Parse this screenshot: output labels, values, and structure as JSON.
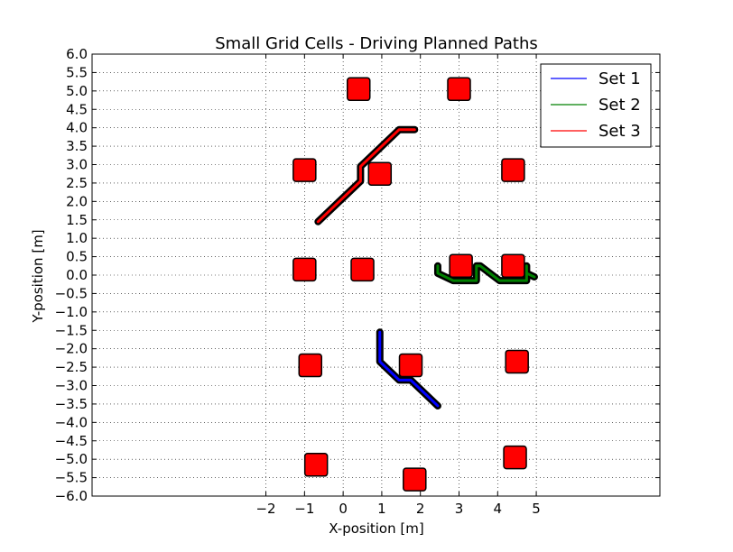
{
  "chart_data": {
    "type": "line",
    "title": "Small Grid Cells - Driving Planned Paths",
    "xlabel": "X-position [m]",
    "ylabel": "Y-position [m]",
    "xlim": [
      -6.5,
      8.2
    ],
    "ylim": [
      -6.0,
      6.0
    ],
    "xticks": [
      -2,
      -1,
      0,
      1,
      2,
      3,
      4,
      5
    ],
    "xtick_labels": [
      "−2",
      "−1",
      "0",
      "1",
      "2",
      "3",
      "4",
      "5"
    ],
    "yticks": [
      6.0,
      5.5,
      5.0,
      4.5,
      4.0,
      3.5,
      3.0,
      2.5,
      2.0,
      1.5,
      1.0,
      0.5,
      0.0,
      -0.5,
      -1.0,
      -1.5,
      -2.0,
      -2.5,
      -3.0,
      -3.5,
      -4.0,
      -4.5,
      -5.0,
      -5.5,
      -6.0
    ],
    "ytick_labels": [
      "6.0",
      "5.5",
      "5.0",
      "4.5",
      "4.0",
      "3.5",
      "3.0",
      "2.5",
      "2.0",
      "1.5",
      "1.0",
      "0.5",
      "0.0",
      "−0.5",
      "−1.0",
      "−1.5",
      "−2.0",
      "−2.5",
      "−3.0",
      "−3.5",
      "−4.0",
      "−4.5",
      "−5.0",
      "−5.5",
      "−6.0"
    ],
    "grid": true,
    "legend_position": "top-right",
    "series": [
      {
        "name": "Set 1",
        "color": "#0000ff",
        "points": [
          [
            0.95,
            -1.55
          ],
          [
            0.95,
            -2.35
          ],
          [
            1.45,
            -2.85
          ],
          [
            1.75,
            -2.85
          ],
          [
            2.45,
            -3.55
          ]
        ]
      },
      {
        "name": "Set 2",
        "color": "#008000",
        "points": [
          [
            2.45,
            0.25
          ],
          [
            2.45,
            0.05
          ],
          [
            2.85,
            -0.15
          ],
          [
            3.45,
            -0.15
          ],
          [
            3.45,
            0.25
          ],
          [
            3.55,
            0.25
          ],
          [
            4.05,
            -0.15
          ],
          [
            4.75,
            -0.15
          ],
          [
            4.75,
            0.25
          ],
          [
            4.75,
            0.05
          ],
          [
            4.95,
            -0.05
          ]
        ]
      },
      {
        "name": "Set 3",
        "color": "#ff0000",
        "points": [
          [
            -0.65,
            1.45
          ],
          [
            0.45,
            2.55
          ],
          [
            0.45,
            2.95
          ],
          [
            0.55,
            3.05
          ],
          [
            1.45,
            3.95
          ],
          [
            1.85,
            3.95
          ]
        ]
      }
    ],
    "obstacles": {
      "color": "#ff0000",
      "points": [
        [
          0.4,
          5.05
        ],
        [
          3.0,
          5.05
        ],
        [
          -1.0,
          2.85
        ],
        [
          0.95,
          2.75
        ],
        [
          4.4,
          2.85
        ],
        [
          -1.0,
          0.15
        ],
        [
          0.5,
          0.15
        ],
        [
          3.05,
          0.25
        ],
        [
          4.4,
          0.25
        ],
        [
          -0.85,
          -2.45
        ],
        [
          1.75,
          -2.45
        ],
        [
          4.5,
          -2.35
        ],
        [
          -0.7,
          -5.15
        ],
        [
          1.85,
          -5.55
        ],
        [
          4.45,
          -4.95
        ]
      ]
    }
  }
}
